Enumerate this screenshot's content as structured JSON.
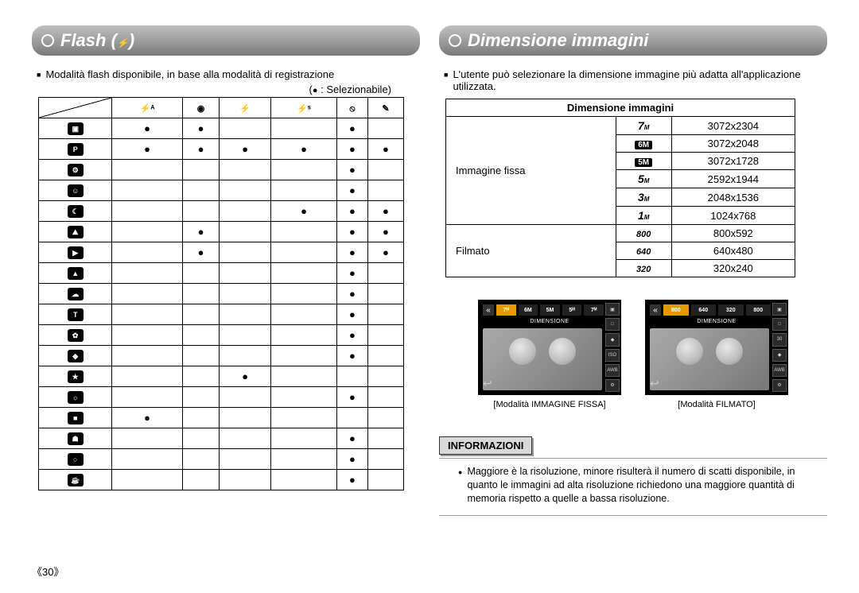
{
  "page_number": "《30》",
  "left": {
    "title": "Flash (",
    "title_icon": "⚡",
    "title_close": ")",
    "intro": "Modalità flash disponibile, in base alla modalità di registrazione",
    "legend_prefix": "(",
    "legend_dot": "●",
    "legend_text": " : Selezionabile)",
    "col_headers": [
      "⚡ᴬ",
      "◉",
      "⚡",
      "⚡ˢ",
      "⦸",
      "✎"
    ],
    "row_icons": [
      "▣",
      "P",
      "⚙",
      "☺",
      "☾",
      "⛰",
      "▶",
      "▲",
      "☁",
      "T",
      "✿",
      "◆",
      "★",
      "☼",
      "■",
      "☗",
      "○",
      "☕"
    ],
    "matrix": [
      [
        1,
        1,
        0,
        0,
        1,
        0
      ],
      [
        1,
        1,
        1,
        1,
        1,
        1
      ],
      [
        0,
        0,
        0,
        0,
        1,
        0
      ],
      [
        0,
        0,
        0,
        0,
        1,
        0
      ],
      [
        0,
        0,
        0,
        1,
        1,
        1
      ],
      [
        0,
        1,
        0,
        0,
        1,
        1
      ],
      [
        0,
        1,
        0,
        0,
        1,
        1
      ],
      [
        0,
        0,
        0,
        0,
        1,
        0
      ],
      [
        0,
        0,
        0,
        0,
        1,
        0
      ],
      [
        0,
        0,
        0,
        0,
        1,
        0
      ],
      [
        0,
        0,
        0,
        0,
        1,
        0
      ],
      [
        0,
        0,
        0,
        0,
        1,
        0
      ],
      [
        0,
        0,
        1,
        0,
        0,
        0
      ],
      [
        0,
        0,
        0,
        0,
        1,
        0
      ],
      [
        1,
        0,
        0,
        0,
        0,
        0
      ],
      [
        0,
        0,
        0,
        0,
        1,
        0
      ],
      [
        0,
        0,
        0,
        0,
        1,
        0
      ],
      [
        0,
        0,
        0,
        0,
        1,
        0
      ]
    ]
  },
  "right": {
    "title": "Dimensione immagini",
    "intro": "L'utente può selezionare la dimensione immagine più adatta all'applicazione utilizzata.",
    "table": {
      "header": "Dimensione immagini",
      "groups": [
        {
          "label": "Immagine fissa",
          "rows": [
            {
              "icon": {
                "big": "7",
                "sub": "M",
                "style": "plain"
              },
              "value": "3072x2304"
            },
            {
              "icon": {
                "big": "6M",
                "sub": "",
                "style": "inv"
              },
              "value": "3072x2048"
            },
            {
              "icon": {
                "big": "5M",
                "sub": "",
                "style": "inv"
              },
              "value": "3072x1728"
            },
            {
              "icon": {
                "big": "5",
                "sub": "M",
                "style": "plain"
              },
              "value": "2592x1944"
            },
            {
              "icon": {
                "big": "3",
                "sub": "M",
                "style": "plain"
              },
              "value": "2048x1536"
            },
            {
              "icon": {
                "big": "1",
                "sub": "M",
                "style": "plain"
              },
              "value": "1024x768"
            }
          ]
        },
        {
          "label": "Filmato",
          "rows": [
            {
              "icon": {
                "big": "800",
                "sub": "",
                "style": "vid"
              },
              "value": "800x592"
            },
            {
              "icon": {
                "big": "640",
                "sub": "",
                "style": "vid"
              },
              "value": "640x480"
            },
            {
              "icon": {
                "big": "320",
                "sub": "",
                "style": "vid"
              },
              "value": "320x240"
            }
          ]
        }
      ]
    },
    "previews": [
      {
        "tabs": [
          "7ᴹ",
          "6M",
          "5M",
          "5ᴹ",
          "7ᴹ"
        ],
        "sel_index": 0,
        "overlay": "DIMENSIONE",
        "sidebar": [
          "▣",
          "□",
          "◆",
          "ISO",
          "AWB",
          "⚙"
        ],
        "caption": "[Modalità IMMAGINE FISSA]"
      },
      {
        "tabs": [
          "800",
          "640",
          "320",
          "800"
        ],
        "sel_index": 0,
        "overlay": "DIMENSIONE",
        "sidebar": [
          "▣",
          "□",
          "30",
          "◆",
          "AWB",
          "⚙"
        ],
        "caption": "[Modalità FILMATO]"
      }
    ],
    "info": {
      "title": "INFORMAZIONI",
      "body": "Maggiore è la risoluzione, minore risulterà il numero di scatti disponibile, in quanto le immagini ad alta risoluzione richiedono una maggiore quantità di memoria rispetto a quelle a bassa risoluzione."
    }
  }
}
